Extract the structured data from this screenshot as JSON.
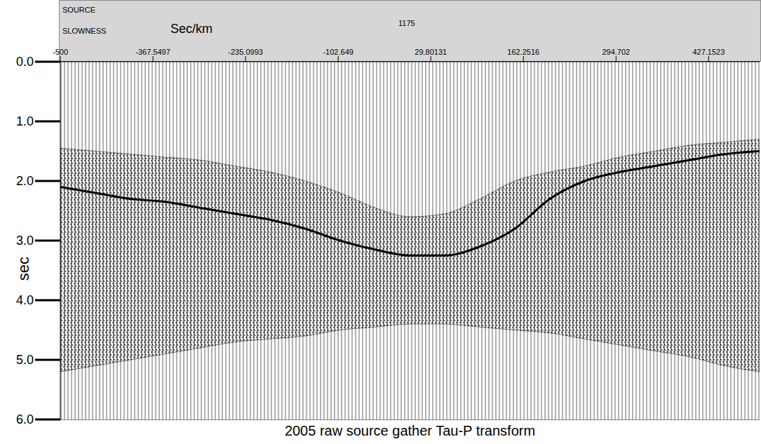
{
  "chart_data": {
    "type": "seismic",
    "title": "2005 raw source gather Tau-P transform",
    "xlabel": "Sec/km",
    "ylabel": "sec",
    "annotations": [
      "SOURCE",
      "SLOWNESS",
      "1175"
    ],
    "x": [
      -500,
      -450,
      -400,
      -350,
      -300,
      -250,
      -200,
      -150,
      -100,
      -50,
      0,
      50,
      100,
      150,
      200,
      250,
      300,
      350,
      400,
      450,
      500
    ],
    "series": [
      {
        "type": "area",
        "color": "#000000",
        "values": [
          [
            1.45,
            5.2
          ],
          [
            1.5,
            5.1
          ],
          [
            1.55,
            5.0
          ],
          [
            1.6,
            4.9
          ],
          [
            1.65,
            4.8
          ],
          [
            1.75,
            4.7
          ],
          [
            1.85,
            4.65
          ],
          [
            2.0,
            4.6
          ],
          [
            2.2,
            4.5
          ],
          [
            2.45,
            4.45
          ],
          [
            2.6,
            4.4
          ],
          [
            2.55,
            4.4
          ],
          [
            2.3,
            4.45
          ],
          [
            2.0,
            4.5
          ],
          [
            1.85,
            4.55
          ],
          [
            1.75,
            4.65
          ],
          [
            1.6,
            4.75
          ],
          [
            1.5,
            4.85
          ],
          [
            1.4,
            4.95
          ],
          [
            1.35,
            5.1
          ],
          [
            1.3,
            5.2
          ]
        ]
      },
      {
        "type": "line",
        "color": "#000000",
        "values": [
          2.1,
          2.2,
          2.3,
          2.35,
          2.45,
          2.55,
          2.65,
          2.8,
          3.0,
          3.15,
          3.25,
          3.25,
          3.1,
          2.8,
          2.3,
          2.0,
          1.85,
          1.75,
          1.65,
          1.55,
          1.5
        ]
      }
    ],
    "xlim": [
      -500,
      500
    ],
    "xticks": [
      -500,
      -367.5497,
      -235.0993,
      -102.649,
      29.80131,
      162.2516,
      294.702,
      427.1523
    ],
    "ylim": [
      0,
      6
    ],
    "yticks": [
      {
        "value": 0,
        "label": "0.0"
      },
      {
        "value": 1,
        "label": "1.0"
      },
      {
        "value": 2,
        "label": "2.0"
      },
      {
        "value": 3,
        "label": "3.0"
      },
      {
        "value": 4,
        "label": "4.0"
      },
      {
        "value": 5,
        "label": "5.0"
      },
      {
        "value": 6,
        "label": "6.0"
      }
    ],
    "grid": true
  }
}
